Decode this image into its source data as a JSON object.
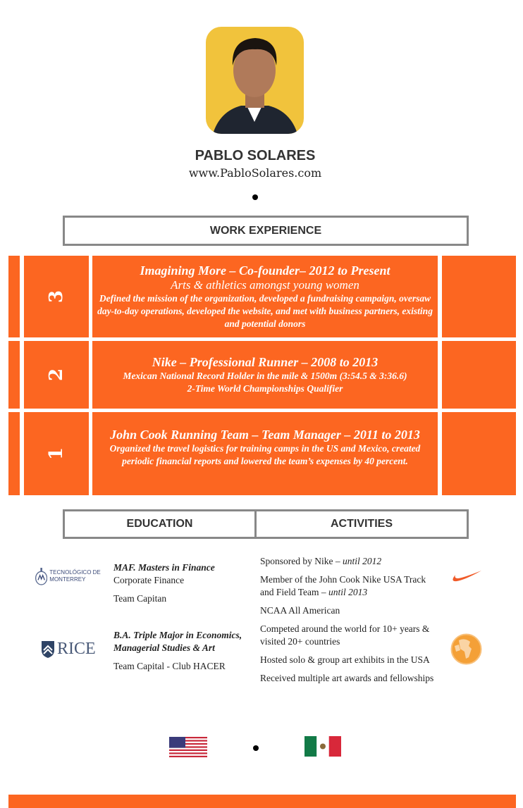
{
  "profile": {
    "name": "PABLO SOLARES",
    "website": "www.PabloSolares.com"
  },
  "work": {
    "heading": "WORK EXPERIENCE",
    "items": [
      {
        "number": "3",
        "title": "Imagining More – Co-founder– 2012 to Present",
        "subtitle": "Arts & athletics amongst young women",
        "description": "Defined the mission of the organization, developed a fundraising campaign, oversaw day-to-day operations, developed the website, and met with business partners, existing and potential donors"
      },
      {
        "number": "2",
        "title": "Nike – Professional Runner – 2008 to 2013",
        "line1": "Mexican National Record Holder in the mile & 1500m (3:54.5 & 3:36.6)",
        "line2": "2-Time World Championships Qualifier"
      },
      {
        "number": "1",
        "title": "John Cook Running Team – Team Manager – 2011 to 2013",
        "description": "Organized the travel logistics for training camps in the US and Mexico, created periodic financial reports and lowered the team’s expenses by 40 percent."
      }
    ]
  },
  "education": {
    "heading": "EDUCATION",
    "items": [
      {
        "logo": "TECNOLÓGICO DE MONTERREY",
        "degree": "MAF. Masters in Finance",
        "detail": "Corporate Finance",
        "extra": "Team Capitan"
      },
      {
        "logo": "RICE",
        "degree": "B.A. Triple Major in Economics, Managerial Studies & Art",
        "extra": "Team Capital - Club HACER"
      }
    ]
  },
  "activities": {
    "heading": "ACTIVITIES",
    "items": [
      {
        "text": "Sponsored by Nike – ",
        "em": "until 2012"
      },
      {
        "text": "Member of the John Cook Nike USA Track and Field Team – ",
        "em": "until 2013"
      },
      {
        "text": "NCAA All American"
      },
      {
        "text": "Competed around the world for 10+ years & visited 20+ countries"
      },
      {
        "text": "Hosted solo & group art exhibits in the USA"
      },
      {
        "text": "Received multiple art awards and fellowships"
      }
    ]
  },
  "colors": {
    "accent": "#fc6621",
    "globe": "#f4a037",
    "border": "#888888"
  }
}
